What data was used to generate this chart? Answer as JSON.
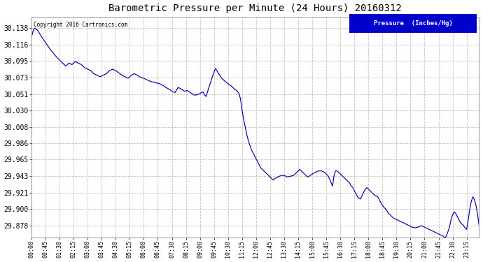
{
  "title": "Barometric Pressure per Minute (24 Hours) 20160312",
  "copyright_text": "Copyright 2016 Cartronics.com",
  "legend_text": "Pressure  (Inches/Hg)",
  "legend_bg": "#0000cc",
  "legend_fg": "#ffffff",
  "line_color": "#0000aa",
  "bg_color": "#ffffff",
  "grid_color": "#bbbbbb",
  "yticks": [
    30.138,
    30.116,
    30.095,
    30.073,
    30.051,
    30.03,
    30.008,
    29.986,
    29.965,
    29.943,
    29.921,
    29.9,
    29.878
  ],
  "ylim": [
    29.862,
    30.152
  ],
  "xtick_labels": [
    "00:00",
    "00:45",
    "01:30",
    "02:15",
    "03:00",
    "03:45",
    "04:30",
    "05:15",
    "06:00",
    "06:45",
    "07:30",
    "08:15",
    "09:00",
    "09:45",
    "10:30",
    "11:15",
    "12:00",
    "12:45",
    "13:30",
    "14:15",
    "15:00",
    "15:45",
    "16:30",
    "17:15",
    "18:00",
    "18:45",
    "19:30",
    "20:15",
    "21:00",
    "21:45",
    "22:30",
    "23:15"
  ],
  "pressure_keypoints": [
    [
      0,
      30.126
    ],
    [
      5,
      30.134
    ],
    [
      10,
      30.138
    ],
    [
      20,
      30.135
    ],
    [
      30,
      30.128
    ],
    [
      40,
      30.122
    ],
    [
      50,
      30.116
    ],
    [
      60,
      30.11
    ],
    [
      70,
      30.105
    ],
    [
      80,
      30.1
    ],
    [
      90,
      30.096
    ],
    [
      100,
      30.092
    ],
    [
      110,
      30.088
    ],
    [
      120,
      30.092
    ],
    [
      130,
      30.09
    ],
    [
      140,
      30.094
    ],
    [
      150,
      30.092
    ],
    [
      160,
      30.09
    ],
    [
      170,
      30.086
    ],
    [
      180,
      30.084
    ],
    [
      190,
      30.082
    ],
    [
      200,
      30.078
    ],
    [
      210,
      30.076
    ],
    [
      220,
      30.074
    ],
    [
      230,
      30.076
    ],
    [
      240,
      30.078
    ],
    [
      250,
      30.082
    ],
    [
      260,
      30.084
    ],
    [
      270,
      30.082
    ],
    [
      280,
      30.079
    ],
    [
      290,
      30.076
    ],
    [
      300,
      30.074
    ],
    [
      310,
      30.072
    ],
    [
      320,
      30.076
    ],
    [
      330,
      30.078
    ],
    [
      340,
      30.076
    ],
    [
      350,
      30.073
    ],
    [
      360,
      30.072
    ],
    [
      370,
      30.07
    ],
    [
      380,
      30.068
    ],
    [
      390,
      30.067
    ],
    [
      400,
      30.066
    ],
    [
      410,
      30.065
    ],
    [
      420,
      30.063
    ],
    [
      430,
      30.06
    ],
    [
      440,
      30.058
    ],
    [
      450,
      30.055
    ],
    [
      460,
      30.053
    ],
    [
      470,
      30.06
    ],
    [
      480,
      30.058
    ],
    [
      490,
      30.055
    ],
    [
      500,
      30.056
    ],
    [
      510,
      30.053
    ],
    [
      520,
      30.05
    ],
    [
      530,
      30.05
    ],
    [
      540,
      30.052
    ],
    [
      550,
      30.054
    ],
    [
      555,
      30.05
    ],
    [
      560,
      30.048
    ],
    [
      565,
      30.055
    ],
    [
      575,
      30.068
    ],
    [
      585,
      30.08
    ],
    [
      590,
      30.085
    ],
    [
      600,
      30.078
    ],
    [
      610,
      30.072
    ],
    [
      620,
      30.068
    ],
    [
      630,
      30.065
    ],
    [
      640,
      30.062
    ],
    [
      650,
      30.058
    ],
    [
      660,
      30.055
    ],
    [
      665,
      30.052
    ],
    [
      670,
      30.045
    ],
    [
      675,
      30.03
    ],
    [
      680,
      30.018
    ],
    [
      685,
      30.008
    ],
    [
      690,
      29.998
    ],
    [
      695,
      29.99
    ],
    [
      700,
      29.984
    ],
    [
      705,
      29.978
    ],
    [
      710,
      29.974
    ],
    [
      715,
      29.97
    ],
    [
      720,
      29.966
    ],
    [
      725,
      29.962
    ],
    [
      730,
      29.958
    ],
    [
      735,
      29.954
    ],
    [
      740,
      29.952
    ],
    [
      745,
      29.95
    ],
    [
      750,
      29.948
    ],
    [
      755,
      29.946
    ],
    [
      760,
      29.944
    ],
    [
      765,
      29.942
    ],
    [
      770,
      29.94
    ],
    [
      775,
      29.938
    ],
    [
      780,
      29.94
    ],
    [
      790,
      29.942
    ],
    [
      800,
      29.944
    ],
    [
      810,
      29.944
    ],
    [
      820,
      29.942
    ],
    [
      830,
      29.943
    ],
    [
      840,
      29.944
    ],
    [
      845,
      29.946
    ],
    [
      850,
      29.948
    ],
    [
      855,
      29.95
    ],
    [
      860,
      29.952
    ],
    [
      865,
      29.95
    ],
    [
      870,
      29.948
    ],
    [
      875,
      29.946
    ],
    [
      880,
      29.944
    ],
    [
      885,
      29.942
    ],
    [
      890,
      29.943
    ],
    [
      900,
      29.946
    ],
    [
      910,
      29.948
    ],
    [
      920,
      29.95
    ],
    [
      930,
      29.95
    ],
    [
      940,
      29.948
    ],
    [
      950,
      29.944
    ],
    [
      955,
      29.94
    ],
    [
      960,
      29.935
    ],
    [
      965,
      29.93
    ],
    [
      970,
      29.944
    ],
    [
      975,
      29.95
    ],
    [
      980,
      29.95
    ],
    [
      985,
      29.948
    ],
    [
      990,
      29.946
    ],
    [
      995,
      29.944
    ],
    [
      1000,
      29.942
    ],
    [
      1005,
      29.94
    ],
    [
      1010,
      29.938
    ],
    [
      1015,
      29.936
    ],
    [
      1020,
      29.934
    ],
    [
      1025,
      29.93
    ],
    [
      1030,
      29.928
    ],
    [
      1035,
      29.924
    ],
    [
      1040,
      29.92
    ],
    [
      1045,
      29.916
    ],
    [
      1050,
      29.914
    ],
    [
      1055,
      29.913
    ],
    [
      1060,
      29.918
    ],
    [
      1065,
      29.922
    ],
    [
      1070,
      29.926
    ],
    [
      1075,
      29.928
    ],
    [
      1080,
      29.926
    ],
    [
      1085,
      29.924
    ],
    [
      1090,
      29.922
    ],
    [
      1100,
      29.918
    ],
    [
      1110,
      29.916
    ],
    [
      1115,
      29.912
    ],
    [
      1120,
      29.908
    ],
    [
      1125,
      29.905
    ],
    [
      1130,
      29.902
    ],
    [
      1135,
      29.9
    ],
    [
      1140,
      29.897
    ],
    [
      1145,
      29.894
    ],
    [
      1150,
      29.892
    ],
    [
      1155,
      29.89
    ],
    [
      1160,
      29.888
    ],
    [
      1170,
      29.886
    ],
    [
      1180,
      29.884
    ],
    [
      1190,
      29.882
    ],
    [
      1200,
      29.88
    ],
    [
      1210,
      29.878
    ],
    [
      1220,
      29.876
    ],
    [
      1230,
      29.875
    ],
    [
      1240,
      29.876
    ],
    [
      1250,
      29.878
    ],
    [
      1260,
      29.876
    ],
    [
      1270,
      29.874
    ],
    [
      1280,
      29.872
    ],
    [
      1290,
      29.87
    ],
    [
      1300,
      29.868
    ],
    [
      1310,
      29.866
    ],
    [
      1320,
      29.864
    ],
    [
      1325,
      29.862
    ],
    [
      1330,
      29.864
    ],
    [
      1340,
      29.876
    ],
    [
      1345,
      29.886
    ],
    [
      1350,
      29.892
    ],
    [
      1355,
      29.896
    ],
    [
      1360,
      29.894
    ],
    [
      1365,
      29.89
    ],
    [
      1370,
      29.886
    ],
    [
      1375,
      29.882
    ],
    [
      1380,
      29.88
    ],
    [
      1385,
      29.878
    ],
    [
      1390,
      29.875
    ],
    [
      1395,
      29.873
    ],
    [
      1400,
      29.885
    ],
    [
      1405,
      29.9
    ],
    [
      1410,
      29.91
    ],
    [
      1415,
      29.916
    ],
    [
      1420,
      29.912
    ],
    [
      1425,
      29.905
    ],
    [
      1430,
      29.893
    ],
    [
      1435,
      29.878
    ]
  ]
}
